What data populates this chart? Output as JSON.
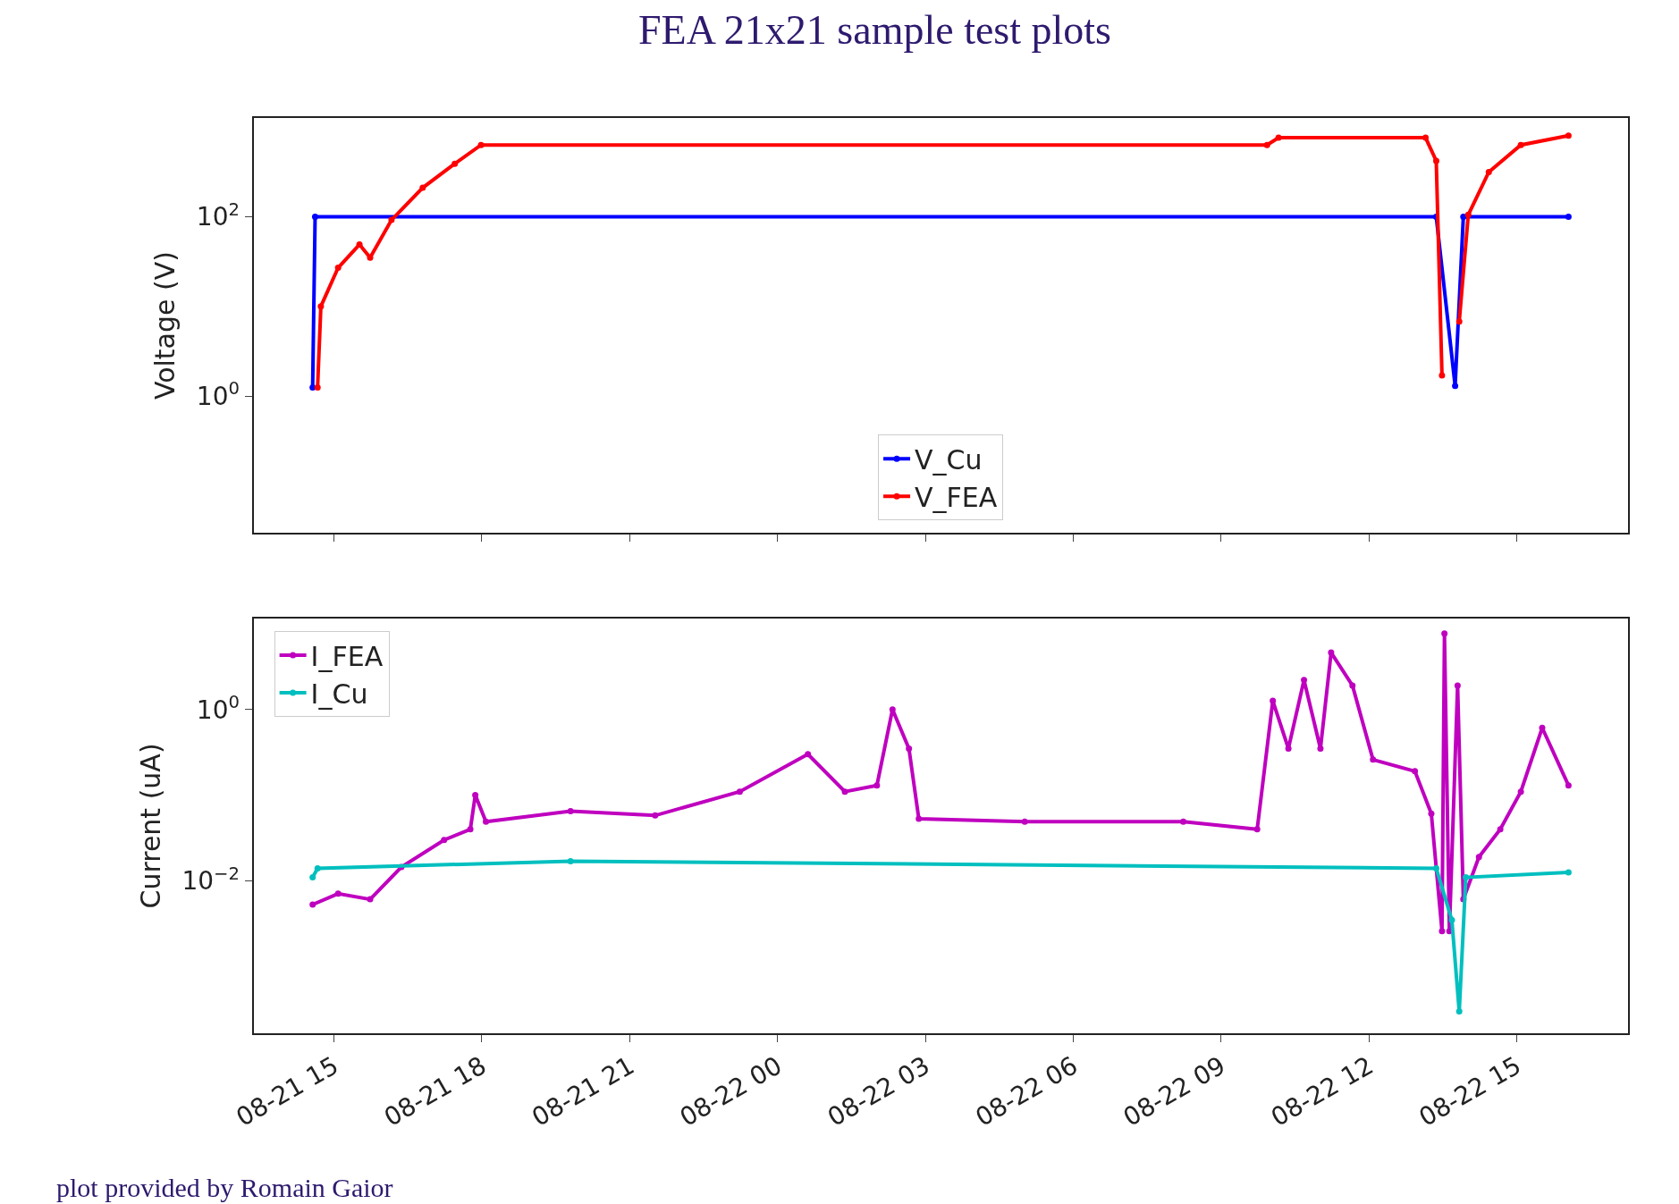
{
  "chart_data": [
    {
      "type": "line",
      "title": "FEA 21x21 sample test plots",
      "ylabel": "Voltage (V)",
      "log": "y",
      "legend": "bottom",
      "marker": "circle",
      "line_style": "solid",
      "tick_labels": "y",
      "xlim": [
        "--08-21T13:22",
        "--08-22T17:15"
      ],
      "xticks": [
        {
          "value": "--08-21T15:00",
          "label": null
        },
        {
          "value": "--08-21T18:00",
          "label": null
        },
        {
          "value": "--08-21T21:00",
          "label": null
        },
        {
          "value": "--08-22T00:00",
          "label": null
        },
        {
          "value": "--08-22T03:00",
          "label": null
        },
        {
          "value": "--08-22T06:00",
          "label": null
        },
        {
          "value": "--08-22T09:00",
          "label": null
        },
        {
          "value": "--08-22T12:00",
          "label": null
        },
        {
          "value": "--08-22T15:00",
          "label": null
        }
      ],
      "ylim": [
        0.03,
        1260
      ],
      "yticks": [
        {
          "value": 1,
          "label": "10$^{0}$"
        },
        {
          "value": 100,
          "label": "10$^{2}$"
        }
      ],
      "series": [
        {
          "name": "V_Cu",
          "color": "#0000ff",
          "x": [
            "--08-21T14:34",
            "--08-21T14:37",
            "--08-22T13:22",
            "--08-22T13:45",
            "--08-22T13:55",
            "--08-22T16:03"
          ],
          "values": [
            1.25,
            100,
            100,
            1.3,
            100,
            100
          ]
        },
        {
          "name": "V_FEA",
          "color": "#ff0000",
          "x": [
            "--08-21T14:40",
            "--08-21T14:44",
            "--08-21T15:05",
            "--08-21T15:31",
            "--08-21T15:44",
            "--08-21T16:10",
            "--08-21T16:48",
            "--08-21T17:27",
            "--08-21T17:59",
            "--08-22T09:56",
            "--08-22T10:10",
            "--08-22T13:09",
            "--08-22T13:22",
            "--08-22T13:29",
            "--08-22T13:41",
            "--08-22T13:50",
            "--08-22T14:01",
            "--08-22T14:26",
            "--08-22T15:05",
            "--08-22T16:03"
          ],
          "values": [
            1.25,
            10,
            27,
            49,
            35,
            92,
            210,
            390,
            630,
            630,
            760,
            760,
            420,
            1.7,
            null,
            6.8,
            105,
            315,
            630,
            800
          ]
        }
      ]
    },
    {
      "type": "line",
      "ylabel": "Current (uA)",
      "log": "y",
      "legend": "top left",
      "marker": "circle",
      "line_style": "solid",
      "xlim": [
        "--08-21T13:22",
        "--08-22T17:15"
      ],
      "xticks": [
        {
          "value": "--08-21T15:00",
          "label": "08-21 15"
        },
        {
          "value": "--08-21T18:00",
          "label": "08-21 18"
        },
        {
          "value": "--08-21T21:00",
          "label": "08-21 21"
        },
        {
          "value": "--08-22T00:00",
          "label": "08-22 00"
        },
        {
          "value": "--08-22T03:00",
          "label": "08-22 03"
        },
        {
          "value": "--08-22T06:00",
          "label": "08-22 06"
        },
        {
          "value": "--08-22T09:00",
          "label": "08-22 09"
        },
        {
          "value": "--08-22T12:00",
          "label": "08-22 12"
        },
        {
          "value": "--08-22T15:00",
          "label": "08-22 15"
        }
      ],
      "ylim": [
        0.000167,
        11.5
      ],
      "yticks": [
        {
          "value": 0.01,
          "label": "10$^{−2}$"
        },
        {
          "value": 1,
          "label": "10$^{0}$"
        }
      ],
      "annotations": [
        "plot provided by Romain Gaior"
      ],
      "series": [
        {
          "name": "I_FEA",
          "color": "#bf00bf",
          "x": [
            "--08-21T14:34",
            "--08-21T15:05",
            "--08-21T15:44",
            "--08-21T16:22",
            "--08-21T17:14",
            "--08-21T17:46",
            "--08-21T17:52",
            "--08-21T18:05",
            "--08-21T19:48",
            "--08-21T21:31",
            "--08-21T23:14",
            "--08-22T00:37",
            "--08-22T01:22",
            "--08-22T02:01",
            "--08-22T02:20",
            "--08-22T02:40",
            "--08-22T02:52",
            "--08-22T05:01",
            "--08-22T08:14",
            "--08-22T09:44",
            "--08-22T10:03",
            "--08-22T10:22",
            "--08-22T10:41",
            "--08-22T11:01",
            "--08-22T11:14",
            "--08-22T11:40",
            "--08-22T12:05",
            "--08-22T12:56",
            "--08-22T13:16",
            "--08-22T13:29",
            "--08-22T13:32",
            "--08-22T13:38",
            "--08-22T13:48",
            "--08-22T13:55",
            "--08-22T14:14",
            "--08-22T14:40",
            "--08-22T15:05",
            "--08-22T15:31",
            "--08-22T16:03"
          ],
          "values": [
            0.0053,
            0.0071,
            0.0061,
            0.0145,
            0.03,
            0.04,
            0.1,
            0.049,
            0.065,
            0.058,
            0.11,
            0.3,
            0.11,
            0.13,
            1.0,
            0.35,
            0.053,
            0.049,
            0.049,
            0.04,
            1.26,
            0.35,
            2.2,
            0.35,
            4.6,
            1.9,
            0.26,
            0.19,
            0.061,
            0.0026,
            7.7,
            0.0026,
            1.9,
            0.0061,
            0.019,
            0.04,
            0.11,
            0.61,
            0.13
          ]
        },
        {
          "name": "I_Cu",
          "color": "#00bfbf",
          "x": [
            "--08-21T14:34",
            "--08-21T14:40",
            "--08-21T19:48",
            "--08-22T13:22",
            "--08-22T13:41",
            "--08-22T13:50",
            "--08-22T13:58",
            "--08-22T16:03"
          ],
          "values": [
            0.011,
            0.014,
            0.017,
            0.014,
            0.0035,
            0.0003,
            0.011,
            0.0126
          ]
        }
      ]
    }
  ]
}
